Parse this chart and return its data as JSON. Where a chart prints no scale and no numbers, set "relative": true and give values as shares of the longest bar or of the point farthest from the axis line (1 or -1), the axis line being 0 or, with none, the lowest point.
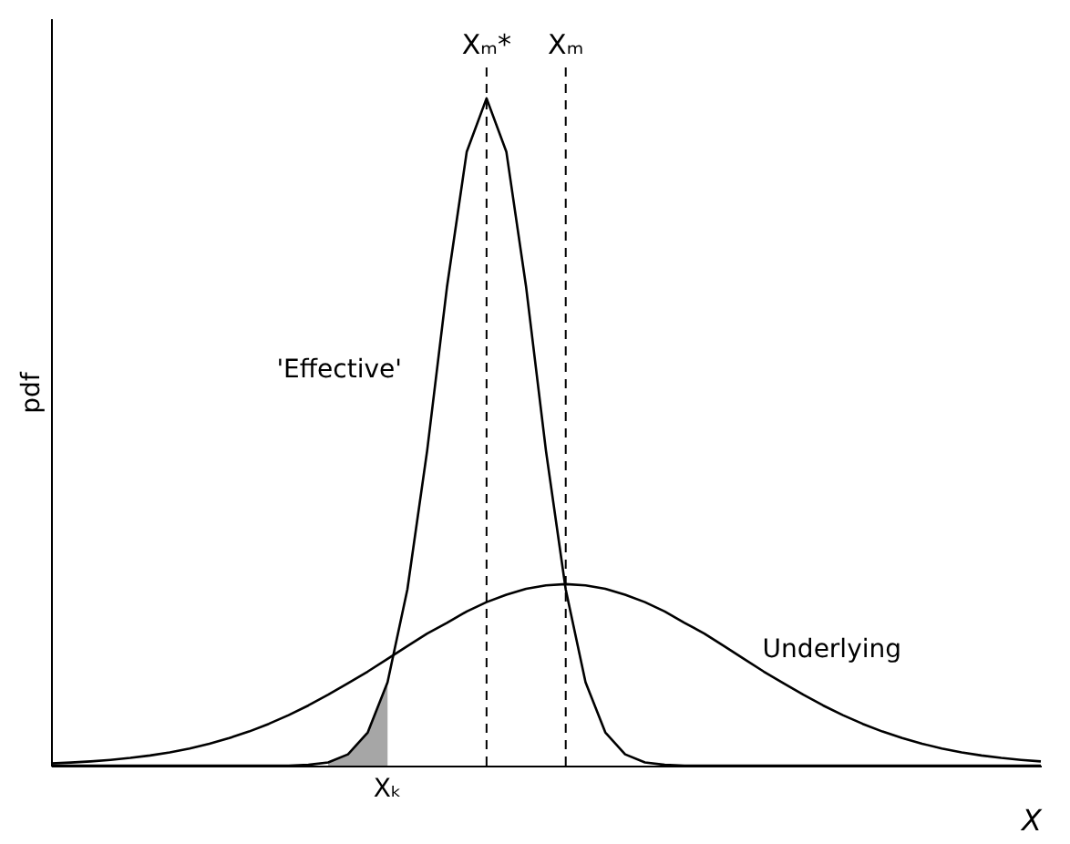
{
  "chart_data": {
    "type": "line",
    "relative": true,
    "xlabel": "X",
    "ylabel": "pdf",
    "categories": [
      null,
      null,
      null,
      null,
      null,
      null,
      null,
      null,
      null,
      null,
      null,
      null,
      null,
      null,
      null,
      null,
      null,
      null,
      null,
      null,
      null,
      null,
      null,
      null,
      null,
      null,
      null,
      null,
      null,
      null,
      null,
      null,
      null,
      null,
      null,
      null,
      null,
      null,
      null,
      null,
      null,
      null,
      null,
      null,
      null,
      null,
      null,
      null,
      null,
      null,
      null
    ],
    "series": [
      {
        "type": "area",
        "color": "#a6a6a6",
        "values": [
          null,
          null,
          null,
          null,
          null,
          null,
          null,
          null,
          null,
          null,
          null,
          null,
          null,
          null,
          0.0048,
          0.0169,
          0.0498,
          0.125,
          null,
          null,
          null,
          null,
          null,
          null,
          null,
          null,
          null,
          null,
          null,
          null,
          null,
          null,
          null,
          null,
          null,
          null,
          null,
          null,
          null,
          null,
          null,
          null,
          null,
          null,
          null,
          null,
          null,
          null,
          null,
          null,
          null
        ]
      },
      {
        "color": "#000000",
        "values": [
          0,
          0,
          0,
          0,
          0,
          0,
          0,
          0,
          0,
          0,
          0,
          0,
          0,
          0.0012,
          0.0048,
          0.0169,
          0.0498,
          0.125,
          0.264,
          0.472,
          0.717,
          0.92,
          1,
          0.92,
          0.717,
          0.472,
          0.264,
          0.125,
          0.0498,
          0.0169,
          0.0048,
          0.0012,
          0,
          0,
          0,
          0,
          0,
          0,
          0,
          0,
          0,
          0,
          0,
          0,
          0,
          0,
          0,
          0,
          0,
          0,
          0
        ]
      },
      {
        "color": "#000000",
        "values": [
          0.0033,
          0.0046,
          0.0063,
          0.0086,
          0.0115,
          0.0152,
          0.0199,
          0.0257,
          0.0328,
          0.0412,
          0.0511,
          0.0626,
          0.0757,
          0.0902,
          0.1063,
          0.1235,
          0.141,
          0.16,
          0.179,
          0.198,
          0.214,
          0.231,
          0.245,
          0.256,
          0.265,
          0.27,
          0.272,
          0.27,
          0.265,
          0.256,
          0.245,
          0.231,
          0.214,
          0.198,
          0.179,
          0.16,
          0.141,
          0.1235,
          0.1063,
          0.0902,
          0.0757,
          0.0626,
          0.0511,
          0.0412,
          0.0328,
          0.0257,
          0.0199,
          0.0152,
          0.0115,
          0.0086,
          0.0063
        ]
      }
    ],
    "annotations": [
      "Xₖ",
      "'Effective'",
      "Underlying",
      "Xₘ*",
      "Xₘ"
    ]
  }
}
